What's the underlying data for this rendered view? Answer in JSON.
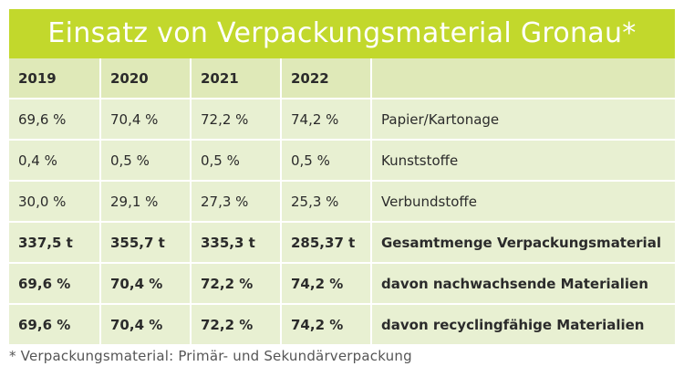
{
  "title": "Einsatz von Verpackungsmaterial Gronau*",
  "header": [
    "2019",
    "2020",
    "2021",
    "2022",
    ""
  ],
  "rows": [
    {
      "cells": [
        "69,6 %",
        "70,4 %",
        "72,2 %",
        "74,2 %",
        "Papier/Kartonage"
      ],
      "bold": false
    },
    {
      "cells": [
        "0,4 %",
        "0,5 %",
        "0,5 %",
        "0,5 %",
        "Kunststoffe"
      ],
      "bold": false
    },
    {
      "cells": [
        "30,0 %",
        "29,1 %",
        "27,3 %",
        "25,3 %",
        "Verbundstoffe"
      ],
      "bold": false
    },
    {
      "cells": [
        "337,5 t",
        "355,7 t",
        "335,3 t",
        "285,37 t",
        "Gesamtmenge Verpackungsmaterial"
      ],
      "bold": true
    },
    {
      "cells": [
        "69,6 %",
        "70,4 %",
        "72,2 %",
        "74,2 %",
        "davon nachwachsende Materialien"
      ],
      "bold": true
    },
    {
      "cells": [
        "69,6 %",
        "70,4 %",
        "72,2 %",
        "74,2 %",
        "davon recyclingfähige Materialien"
      ],
      "bold": true
    }
  ],
  "footnote": "* Verpackungsmaterial: Primär- und Sekundärverpackung",
  "colors": {
    "title_bg": "#c2d82c",
    "table_bg": "#e8f0d2",
    "header_bg": "#dfe9b8"
  }
}
